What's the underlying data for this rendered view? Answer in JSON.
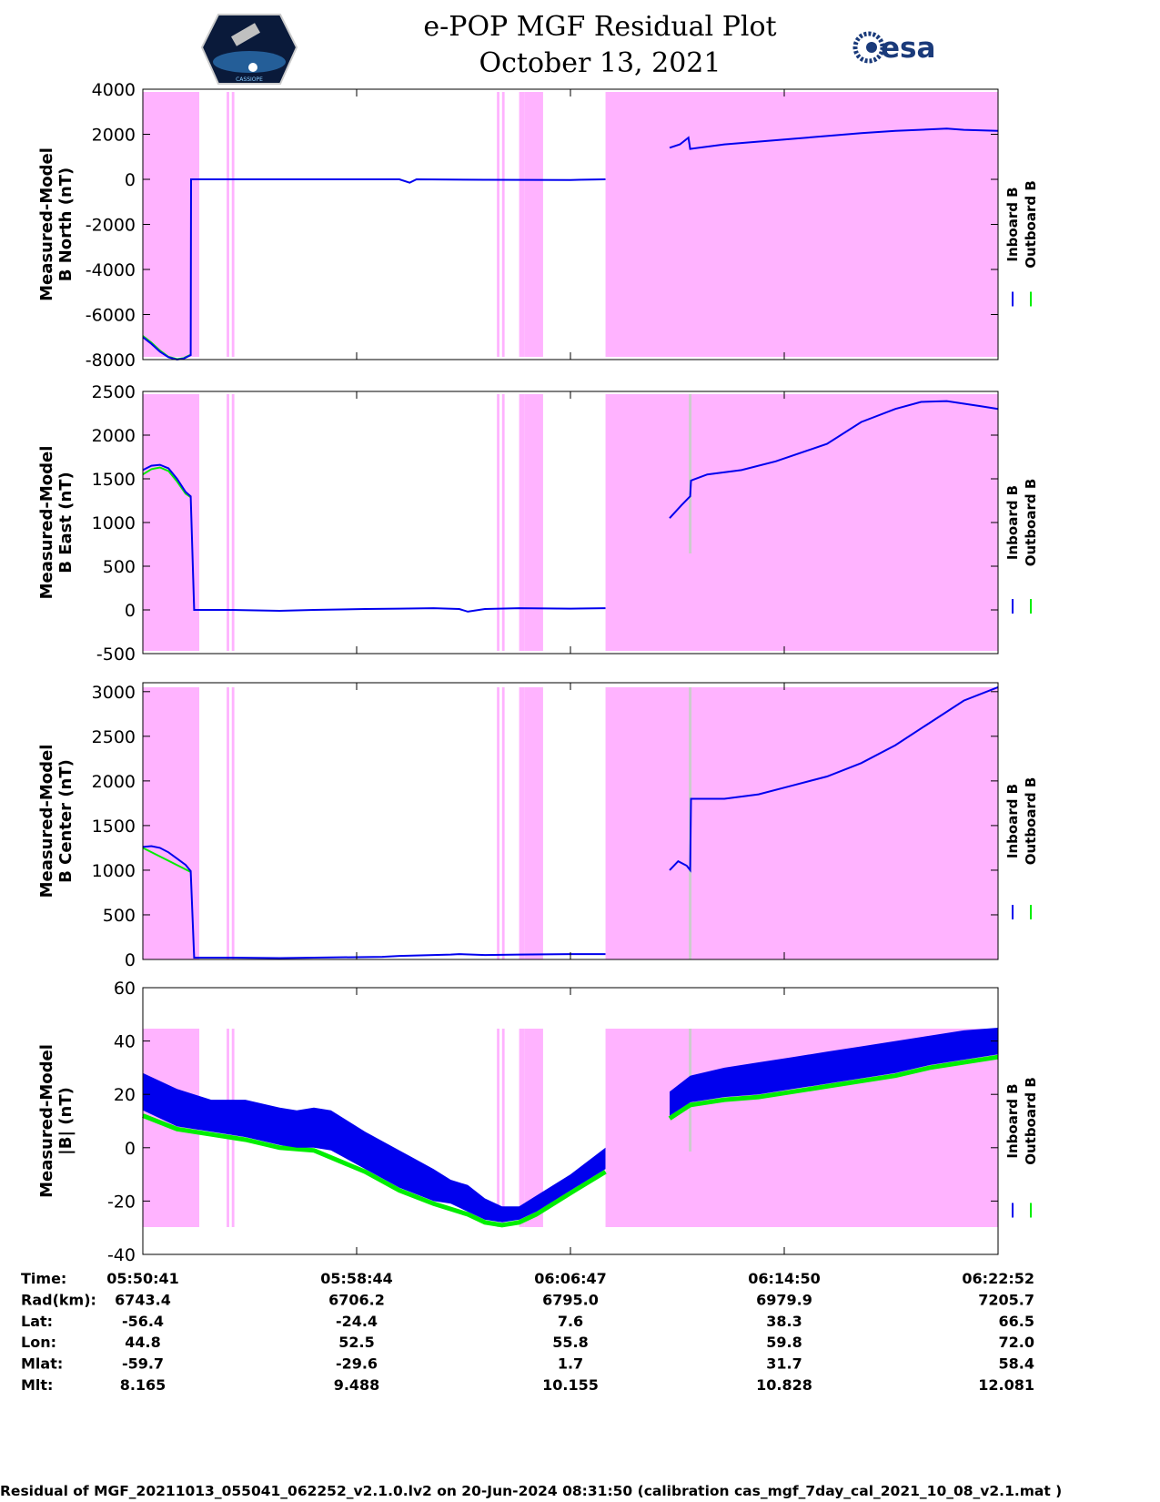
{
  "header": {
    "title": "e-POP MGF Residual Plot",
    "date": "October 13, 2021",
    "left_logo_text": "CASSIOPE",
    "right_logo_text": "esa"
  },
  "colors": {
    "inboard": "#0000ee",
    "outboard": "#00ee00",
    "shade": "#ffb3ff",
    "gap": "#cccccc"
  },
  "chart_data": [
    {
      "type": "line",
      "ylabel": [
        "Measured-Model",
        "B North (nT)"
      ],
      "ylim": [
        -8000,
        4000
      ],
      "yticks": [
        4000,
        2000,
        0,
        -2000,
        -4000,
        -6000,
        -8000
      ],
      "legend": [
        "Inboard B",
        "Outboard B"
      ],
      "inboard": {
        "t": [
          0,
          0.5,
          1,
          1.5,
          2,
          2.4,
          2.8,
          2.82,
          5,
          10,
          15,
          15.6,
          16,
          20,
          25,
          27.05
        ],
        "v": [
          -7000,
          -7300,
          -7650,
          -7900,
          -8000,
          -7950,
          -7800,
          0,
          0,
          0,
          0,
          -150,
          0,
          -20,
          -30,
          0
        ]
      },
      "outboard": {
        "t": [
          0,
          0.5,
          1,
          1.5,
          2,
          2.4,
          2.8
        ],
        "v": [
          -6950,
          -7250,
          -7600,
          -7880,
          -7980,
          -7930,
          -7780
        ]
      },
      "inboard2": {
        "t": [
          30.8,
          31.4,
          31.9,
          32.0,
          34,
          38,
          42,
          44,
          47,
          48,
          50
        ],
        "v": [
          1400,
          1550,
          1850,
          1350,
          1550,
          1800,
          2050,
          2150,
          2250,
          2200,
          2150
        ]
      }
    },
    {
      "type": "line",
      "ylabel": [
        "Measured-Model",
        "B East (nT)"
      ],
      "ylim": [
        -500,
        2500
      ],
      "yticks": [
        2500,
        2000,
        1500,
        1000,
        500,
        0,
        -500
      ],
      "legend": [
        "Inboard B",
        "Outboard B"
      ],
      "inboard": {
        "t": [
          0,
          0.5,
          1,
          1.5,
          2,
          2.5,
          2.8,
          3.0,
          5,
          8,
          10,
          13,
          15,
          17,
          18.5,
          19,
          20,
          22,
          25,
          27.05
        ],
        "v": [
          1600,
          1650,
          1660,
          1620,
          1500,
          1350,
          1300,
          0,
          0,
          -10,
          0,
          10,
          15,
          20,
          10,
          -20,
          10,
          20,
          15,
          20
        ]
      },
      "outboard": {
        "t": [
          0,
          0.5,
          1,
          1.5,
          2,
          2.5,
          2.8
        ],
        "v": [
          1550,
          1610,
          1630,
          1590,
          1470,
          1330,
          1290
        ]
      },
      "inboard2": {
        "t": [
          30.8,
          31.5,
          32.0,
          32.05,
          33,
          35,
          37,
          40,
          42,
          44,
          45.5,
          47,
          49,
          50
        ],
        "v": [
          1050,
          1200,
          1300,
          1480,
          1550,
          1600,
          1700,
          1900,
          2150,
          2300,
          2380,
          2390,
          2330,
          2300
        ]
      }
    },
    {
      "type": "line",
      "ylabel": [
        "Measured-Model",
        "B Center (nT)"
      ],
      "ylim": [
        0,
        3100
      ],
      "yticks": [
        3000,
        2500,
        2000,
        1500,
        1000,
        500,
        0
      ],
      "legend": [
        "Inboard B",
        "Outboard B"
      ],
      "inboard": {
        "t": [
          0,
          0.5,
          1,
          1.5,
          2,
          2.5,
          2.8,
          3.0,
          5,
          8,
          10,
          14,
          15,
          17,
          18,
          18.5,
          20,
          22,
          25,
          27.05
        ],
        "v": [
          1260,
          1270,
          1250,
          1200,
          1130,
          1060,
          990,
          20,
          20,
          15,
          20,
          30,
          40,
          50,
          55,
          60,
          50,
          55,
          60,
          60
        ]
      },
      "outboard": {
        "t": [
          0,
          2.8
        ],
        "v": [
          1250,
          980
        ]
      },
      "inboard2": {
        "t": [
          30.8,
          31.3,
          31.8,
          32.0,
          32.05,
          34,
          36,
          38,
          40,
          42,
          44,
          46,
          48,
          50
        ],
        "v": [
          1000,
          1100,
          1050,
          1000,
          1800,
          1800,
          1850,
          1950,
          2050,
          2200,
          2400,
          2650,
          2900,
          3050
        ]
      }
    },
    {
      "type": "area",
      "ylabel": [
        "Measured-Model",
        "|B| (nT)"
      ],
      "ylim": [
        -40,
        60
      ],
      "yticks": [
        60,
        40,
        20,
        0,
        -20,
        -40
      ],
      "legend": [
        "Inboard B",
        "Outboard B"
      ],
      "band_t": [
        0,
        2,
        4,
        6,
        8,
        9,
        10,
        11,
        13,
        15,
        17,
        18,
        19,
        20,
        21,
        22,
        23,
        25,
        27.05
      ],
      "band_top": [
        28,
        22,
        18,
        18,
        15,
        14,
        15,
        14,
        6,
        -1,
        -8,
        -12,
        -14,
        -19,
        -22,
        -22,
        -18,
        -10,
        0
      ],
      "band_bottom": [
        14,
        8,
        6,
        4,
        1,
        0,
        0,
        -1,
        -8,
        -15,
        -20,
        -21,
        -24,
        -27,
        -28,
        -27,
        -24,
        -16,
        -8
      ],
      "outboard_t": [
        0,
        2,
        4,
        6,
        8,
        10,
        13,
        15,
        17,
        19,
        20,
        21,
        22,
        23,
        25,
        27.05
      ],
      "outboard_v": [
        12,
        7,
        5,
        3,
        0,
        -1,
        -9,
        -16,
        -21,
        -25,
        -28,
        -29,
        -28,
        -25,
        -17,
        -9
      ],
      "band2_t": [
        30.8,
        32,
        34,
        36,
        38,
        40,
        42,
        44,
        46,
        48,
        50
      ],
      "band2_top": [
        21,
        27,
        30,
        32,
        34,
        36,
        38,
        40,
        42,
        44,
        45
      ],
      "band2_bottom": [
        12,
        17,
        19,
        20,
        22,
        24,
        26,
        28,
        31,
        33,
        35
      ],
      "outboard2_t": [
        30.8,
        32,
        34,
        36,
        38,
        40,
        42,
        44,
        46,
        48,
        50
      ],
      "outboard2_v": [
        11,
        16,
        18,
        19,
        21,
        23,
        25,
        27,
        30,
        32,
        34
      ]
    }
  ],
  "shading_intervals_min": [
    [
      0,
      3.3
    ],
    [
      4.9,
      5.05
    ],
    [
      5.2,
      5.35
    ],
    [
      20.7,
      20.85
    ],
    [
      21.0,
      21.15
    ],
    [
      22.0,
      22.3
    ],
    [
      22.3,
      23.4
    ],
    [
      27.05,
      50
    ]
  ],
  "gap_lines_min": [
    32.0
  ],
  "table": {
    "rows": [
      {
        "label": "Time:",
        "values": [
          "05:50:41",
          "05:58:44",
          "06:06:47",
          "06:14:50",
          "06:22:52"
        ]
      },
      {
        "label": "Rad(km):",
        "values": [
          "6743.4",
          "6706.2",
          "6795.0",
          "6979.9",
          "7205.7"
        ]
      },
      {
        "label": "Lat:",
        "values": [
          "-56.4",
          "-24.4",
          "7.6",
          "38.3",
          "66.5"
        ]
      },
      {
        "label": "Lon:",
        "values": [
          "44.8",
          "52.5",
          "55.8",
          "59.8",
          "72.0"
        ]
      },
      {
        "label": "Mlat:",
        "values": [
          "-59.7",
          "-29.6",
          "1.7",
          "31.7",
          "58.4"
        ]
      },
      {
        "label": "Mlt:",
        "values": [
          "8.165",
          "9.488",
          "10.155",
          "10.828",
          "12.081"
        ]
      }
    ]
  },
  "footer": "Residual of MGF_20211013_055041_062252_v2.1.0.lv2 on 20-Jun-2024 08:31:50 (calibration cas_mgf_7day_cal_2021_10_08_v2.1.mat )"
}
